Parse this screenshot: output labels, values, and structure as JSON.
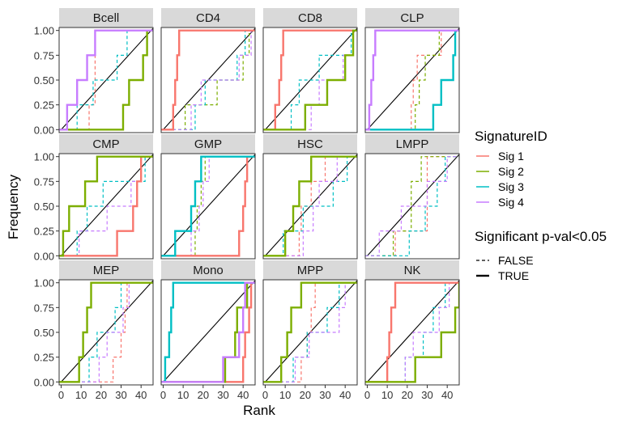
{
  "chart_data": {
    "type": "line",
    "title": "",
    "xlabel": "Rank",
    "ylabel": "Frequency",
    "xlim": [
      -1,
      46
    ],
    "ylim": [
      -0.03,
      1.03
    ],
    "x_ticks": [
      0,
      10,
      20,
      30,
      40
    ],
    "y_ticks": [
      0.0,
      0.25,
      0.5,
      0.75,
      1.0
    ],
    "y_tick_labels": [
      "0.00",
      "0.25",
      "0.50",
      "0.75",
      "1.00"
    ],
    "x_tick_labels": [
      "0",
      "10",
      "20",
      "30",
      "40"
    ],
    "grid": false,
    "diagonal_reference_line": true,
    "step_function": "ecdf",
    "legend": {
      "placement": "right",
      "color_title": "SignatureID",
      "linetype_title": "Significant p-val<0.05",
      "series": [
        {
          "name": "Sig 1",
          "color": "#F8766D"
        },
        {
          "name": "Sig 2",
          "color": "#7CAE00"
        },
        {
          "name": "Sig 3",
          "color": "#00BFC4"
        },
        {
          "name": "Sig 4",
          "color": "#C77CFF"
        }
      ],
      "linetypes": [
        {
          "label": "FALSE",
          "dashed": true
        },
        {
          "label": "TRUE",
          "dashed": false
        }
      ]
    },
    "panels": [
      {
        "label": "Bcell",
        "series": [
          {
            "sig": "Sig 1",
            "significant": false,
            "ranks": [
              14,
              17,
              17,
              17
            ]
          },
          {
            "sig": "Sig 2",
            "significant": true,
            "ranks": [
              31,
              34,
              41,
              43
            ]
          },
          {
            "sig": "Sig 3",
            "significant": false,
            "ranks": [
              8,
              16,
              28,
              33
            ]
          },
          {
            "sig": "Sig 4",
            "significant": true,
            "ranks": [
              3,
              8,
              13,
              17
            ]
          }
        ]
      },
      {
        "label": "CD4",
        "series": [
          {
            "sig": "Sig 1",
            "significant": true,
            "ranks": [
              5,
              6,
              7,
              8
            ]
          },
          {
            "sig": "Sig 2",
            "significant": false,
            "ranks": [
              11,
              27,
              40,
              43
            ]
          },
          {
            "sig": "Sig 3",
            "significant": false,
            "ranks": [
              16,
              21,
              37,
              41
            ]
          },
          {
            "sig": "Sig 4",
            "significant": false,
            "ranks": [
              14,
              19,
              38,
              44
            ]
          }
        ]
      },
      {
        "label": "CD8",
        "series": [
          {
            "sig": "Sig 1",
            "significant": true,
            "ranks": [
              5,
              7,
              8,
              9
            ]
          },
          {
            "sig": "Sig 2",
            "significant": true,
            "ranks": [
              20,
              31,
              40,
              44
            ]
          },
          {
            "sig": "Sig 3",
            "significant": false,
            "ranks": [
              13,
              17,
              27,
              43
            ]
          },
          {
            "sig": "Sig 4",
            "significant": false,
            "ranks": [
              23,
              27,
              39,
              44
            ]
          }
        ]
      },
      {
        "label": "CLP",
        "series": [
          {
            "sig": "Sig 1",
            "significant": false,
            "ranks": [
              22,
              23,
              25,
              37
            ]
          },
          {
            "sig": "Sig 2",
            "significant": false,
            "ranks": [
              24,
              26,
              29,
              36
            ]
          },
          {
            "sig": "Sig 3",
            "significant": true,
            "ranks": [
              33,
              37,
              43,
              44
            ]
          },
          {
            "sig": "Sig 4",
            "significant": true,
            "ranks": [
              1,
              2,
              3,
              4
            ]
          }
        ]
      },
      {
        "label": "CMP",
        "series": [
          {
            "sig": "Sig 1",
            "significant": true,
            "ranks": [
              28,
              36,
              38,
              40
            ]
          },
          {
            "sig": "Sig 2",
            "significant": true,
            "ranks": [
              1,
              4,
              12,
              18
            ]
          },
          {
            "sig": "Sig 3",
            "significant": false,
            "ranks": [
              8,
              13,
              21,
              42
            ]
          },
          {
            "sig": "Sig 4",
            "significant": false,
            "ranks": [
              9,
              23,
              35,
              40
            ]
          }
        ]
      },
      {
        "label": "GMP",
        "series": [
          {
            "sig": "Sig 1",
            "significant": true,
            "ranks": [
              38,
              40,
              41,
              42
            ]
          },
          {
            "sig": "Sig 2",
            "significant": false,
            "ranks": [
              16,
              17,
              19,
              21
            ]
          },
          {
            "sig": "Sig 3",
            "significant": true,
            "ranks": [
              6,
              14,
              16,
              19
            ]
          },
          {
            "sig": "Sig 4",
            "significant": false,
            "ranks": [
              14,
              18,
              20,
              23
            ]
          }
        ]
      },
      {
        "label": "HSC",
        "series": [
          {
            "sig": "Sig 1",
            "significant": false,
            "ranks": [
              17,
              18,
              23,
              30
            ]
          },
          {
            "sig": "Sig 2",
            "significant": true,
            "ranks": [
              10,
              14,
              17,
              23
            ]
          },
          {
            "sig": "Sig 3",
            "significant": false,
            "ranks": [
              9,
              19,
              34,
              41
            ]
          },
          {
            "sig": "Sig 4",
            "significant": false,
            "ranks": [
              19,
              24,
              27,
              36
            ]
          }
        ]
      },
      {
        "label": "LMPP",
        "series": [
          {
            "sig": "Sig 1",
            "significant": false,
            "ranks": [
              14,
              30,
              30,
              30
            ]
          },
          {
            "sig": "Sig 2",
            "significant": false,
            "ranks": [
              13,
              22,
              22,
              27
            ]
          },
          {
            "sig": "Sig 3",
            "significant": false,
            "ranks": [
              21,
              29,
              35,
              39
            ]
          },
          {
            "sig": "Sig 4",
            "significant": false,
            "ranks": [
              6,
              17,
              30,
              40
            ]
          }
        ]
      },
      {
        "label": "MEP",
        "series": [
          {
            "sig": "Sig 1",
            "significant": false,
            "ranks": [
              26,
              30,
              32,
              33
            ]
          },
          {
            "sig": "Sig 2",
            "significant": true,
            "ranks": [
              9,
              11,
              13,
              15
            ]
          },
          {
            "sig": "Sig 3",
            "significant": false,
            "ranks": [
              14,
              18,
              27,
              30
            ]
          },
          {
            "sig": "Sig 4",
            "significant": false,
            "ranks": [
              19,
              23,
              31,
              34
            ]
          }
        ]
      },
      {
        "label": "Mono",
        "series": [
          {
            "sig": "Sig 1",
            "significant": true,
            "ranks": [
              40,
              41,
              43,
              44
            ]
          },
          {
            "sig": "Sig 2",
            "significant": true,
            "ranks": [
              31,
              36,
              37,
              42
            ]
          },
          {
            "sig": "Sig 3",
            "significant": true,
            "ranks": [
              1,
              3,
              4,
              5
            ]
          },
          {
            "sig": "Sig 4",
            "significant": true,
            "ranks": [
              30,
              38,
              40,
              41
            ]
          }
        ]
      },
      {
        "label": "MPP",
        "series": [
          {
            "sig": "Sig 1",
            "significant": false,
            "ranks": [
              18,
              21,
              23,
              25
            ]
          },
          {
            "sig": "Sig 2",
            "significant": true,
            "ranks": [
              8,
              11,
              13,
              18
            ]
          },
          {
            "sig": "Sig 3",
            "significant": false,
            "ranks": [
              14,
              21,
              31,
              37
            ]
          },
          {
            "sig": "Sig 4",
            "significant": false,
            "ranks": [
              15,
              22,
              37,
              40
            ]
          }
        ]
      },
      {
        "label": "NK",
        "series": [
          {
            "sig": "Sig 1",
            "significant": true,
            "ranks": [
              10,
              11,
              12,
              14
            ]
          },
          {
            "sig": "Sig 2",
            "significant": true,
            "ranks": [
              24,
              37,
              44,
              46
            ]
          },
          {
            "sig": "Sig 3",
            "significant": false,
            "ranks": [
              19,
              28,
              33,
              39
            ]
          },
          {
            "sig": "Sig 4",
            "significant": false,
            "ranks": [
              19,
              23,
              36,
              41
            ]
          }
        ]
      }
    ]
  }
}
